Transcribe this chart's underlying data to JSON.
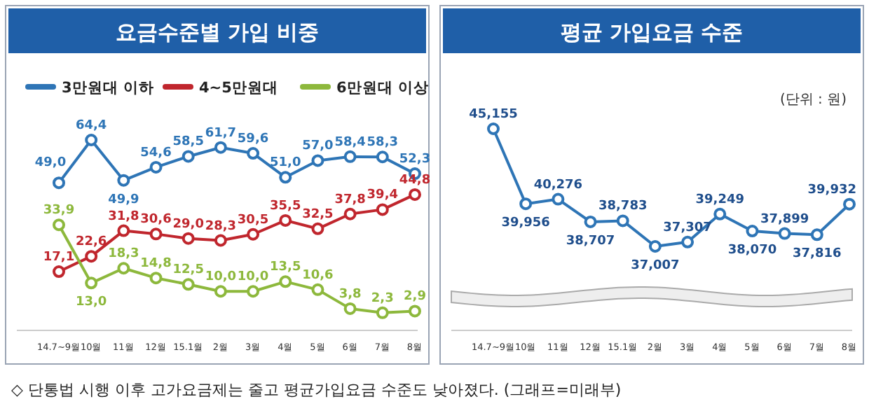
{
  "chart_data": [
    {
      "type": "line",
      "title": "요금수준별 가입 비중",
      "categories": [
        "14.7~9월",
        "10월",
        "11월",
        "12월",
        "15.1월",
        "2월",
        "3월",
        "4월",
        "5월",
        "6월",
        "7월",
        "8월"
      ],
      "marker": "circle",
      "legend": "top",
      "annotations": [
        "◇ 단통법 시행 이후 고가요금제는 줄고 평균가입요금 수준도 낮아졌다. (그래프=미래부)"
      ],
      "series": [
        {
          "name": "3만원대 이하",
          "color": "#2e75b6",
          "values": [
            49.0,
            64.4,
            49.9,
            54.6,
            58.5,
            61.7,
            59.6,
            51.0,
            57.0,
            58.4,
            58.3,
            52.3
          ],
          "value_labels": [
            "49,0",
            "64,4",
            "49,9",
            "54,6",
            "58,5",
            "61,7",
            "59,6",
            "51,0",
            "57,0",
            "58,4",
            "58,3",
            "52,3"
          ]
        },
        {
          "name": "4~5만원대",
          "color": "#c0262d",
          "values": [
            17.1,
            22.6,
            31.8,
            30.6,
            29.0,
            28.3,
            30.5,
            35.5,
            32.5,
            37.8,
            39.4,
            44.8
          ],
          "value_labels": [
            "17,1",
            "22,6",
            "31,8",
            "30,6",
            "29,0",
            "28,3",
            "30,5",
            "35,5",
            "32,5",
            "37,8",
            "39,4",
            "44,8"
          ]
        },
        {
          "name": "6만원대 이상",
          "color": "#8db83c",
          "values": [
            33.9,
            13.0,
            18.3,
            14.8,
            12.5,
            10.0,
            10.0,
            13.5,
            10.6,
            3.8,
            2.3,
            2.9
          ],
          "value_labels": [
            "33,9",
            "13,0",
            "18,3",
            "14,8",
            "12,5",
            "10,0",
            "10,0",
            "13,5",
            "10,6",
            "3,8",
            "2,3",
            "2,9"
          ]
        }
      ]
    },
    {
      "type": "line",
      "title": "평균 가입요금 수준",
      "categories": [
        "14.7~9월",
        "10월",
        "11월",
        "12월",
        "15.1월",
        "2월",
        "3월",
        "4월",
        "5월",
        "6월",
        "7월",
        "8월"
      ],
      "marker": "circle",
      "annotations": [
        "(단위 : 원)"
      ],
      "series": [
        {
          "color": "#2e75b6",
          "values": [
            45155,
            39956,
            40276,
            38707,
            38783,
            37007,
            37307,
            39249,
            38070,
            37899,
            37816,
            39932
          ],
          "value_labels": [
            "45,155",
            "39,956",
            "40,276",
            "38,707",
            "38,783",
            "37,007",
            "37,307",
            "39,249",
            "38,070",
            "37,899",
            "37,816",
            "39,932"
          ]
        }
      ]
    }
  ]
}
